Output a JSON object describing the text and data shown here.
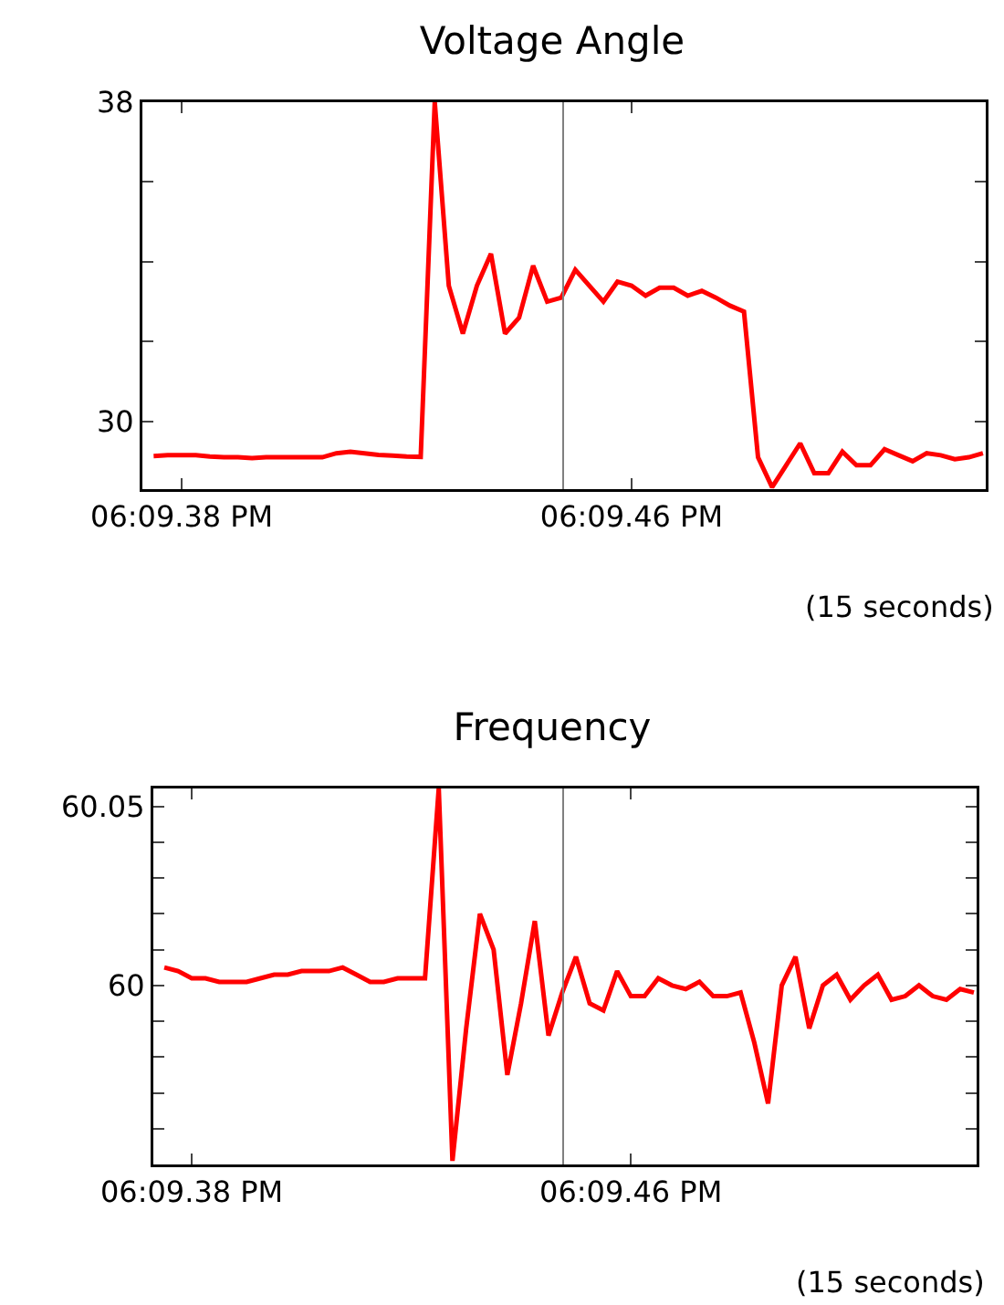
{
  "chart_data": [
    {
      "type": "line",
      "title": "Voltage Angle",
      "categories": [
        null,
        null,
        "06:09.38 PM",
        null,
        null,
        null,
        null,
        null,
        null,
        null,
        null,
        null,
        null,
        null,
        null,
        null,
        null,
        null,
        null,
        null,
        null,
        null,
        null,
        null,
        null,
        null,
        null,
        null,
        null,
        null,
        null,
        null,
        null,
        null,
        "06:09.46 PM",
        null,
        null,
        null,
        null,
        null,
        null,
        null,
        null,
        null,
        null,
        null,
        null,
        null,
        null,
        null,
        null,
        null,
        null,
        null,
        null,
        null,
        null,
        null,
        null,
        null
      ],
      "series": [
        {
          "color": "#ff0000",
          "values": [
            29.13,
            29.15,
            29.15,
            29.15,
            29.12,
            29.1,
            29.1,
            29.08,
            29.1,
            29.1,
            29.1,
            29.1,
            29.1,
            29.2,
            29.24,
            29.2,
            29.16,
            29.14,
            29.12,
            29.11,
            38.0,
            33.4,
            32.2,
            33.4,
            34.2,
            32.2,
            32.6,
            33.9,
            33.0,
            33.1,
            33.8,
            33.4,
            33.0,
            33.5,
            33.4,
            33.15,
            33.35,
            33.35,
            33.15,
            33.27,
            33.1,
            32.9,
            32.75,
            29.1,
            28.35,
            28.9,
            29.45,
            28.7,
            28.7,
            29.24,
            28.9,
            28.9,
            29.3,
            29.15,
            29.0,
            29.2,
            29.15,
            29.05,
            29.1,
            29.2
          ]
        }
      ],
      "ylim": [
        28.3,
        38
      ],
      "yticks": [
        30,
        {
          "value": 32,
          "label": null
        },
        {
          "value": 34,
          "label": null
        },
        {
          "value": 36,
          "label": null
        },
        38
      ],
      "annotations": [
        "(15 seconds)"
      ],
      "grid": false,
      "line_style": "solid"
    },
    {
      "type": "line",
      "title": "Frequency",
      "categories": [
        null,
        null,
        "06:09.38 PM",
        null,
        null,
        null,
        null,
        null,
        null,
        null,
        null,
        null,
        null,
        null,
        null,
        null,
        null,
        null,
        null,
        null,
        null,
        null,
        null,
        null,
        null,
        null,
        null,
        null,
        null,
        null,
        null,
        null,
        null,
        null,
        "06:09.46 PM",
        null,
        null,
        null,
        null,
        null,
        null,
        null,
        null,
        null,
        null,
        null,
        null,
        null,
        null,
        null,
        null,
        null,
        null,
        null,
        null,
        null,
        null,
        null,
        null,
        null
      ],
      "series": [
        {
          "color": "#ff0000",
          "values": [
            60.005,
            60.004,
            60.002,
            60.002,
            60.001,
            60.001,
            60.001,
            60.002,
            60.003,
            60.003,
            60.004,
            60.004,
            60.004,
            60.005,
            60.003,
            60.001,
            60.001,
            60.002,
            60.002,
            60.002,
            60.055,
            59.951,
            59.988,
            60.02,
            60.01,
            59.975,
            59.995,
            60.018,
            59.986,
            59.998,
            60.008,
            59.995,
            59.993,
            60.004,
            59.997,
            59.997,
            60.002,
            60.0,
            59.999,
            60.001,
            59.997,
            59.997,
            59.998,
            59.984,
            59.967,
            60.0,
            60.008,
            59.988,
            60.0,
            60.003,
            59.996,
            60.0,
            60.003,
            59.996,
            59.997,
            60.0,
            59.997,
            59.996,
            59.999,
            59.998
          ]
        }
      ],
      "ylim": [
        59.95,
        60.055
      ],
      "yticks": [
        {
          "value": 59.96,
          "label": null
        },
        {
          "value": 59.97,
          "label": null
        },
        {
          "value": 59.98,
          "label": null
        },
        {
          "value": 59.99,
          "label": null
        },
        60,
        {
          "value": 60.01,
          "label": null
        },
        {
          "value": 60.02,
          "label": null
        },
        {
          "value": 60.03,
          "label": null
        },
        {
          "value": 60.04,
          "label": null
        },
        60.05
      ],
      "annotations": [
        "(15 seconds)"
      ],
      "grid": false,
      "line_style": "solid"
    }
  ]
}
